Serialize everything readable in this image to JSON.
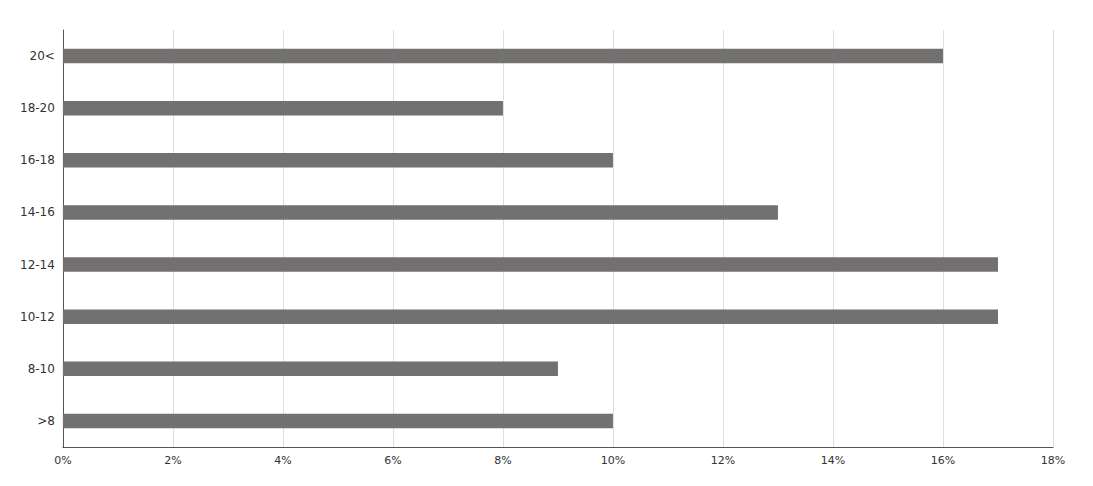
{
  "chart_data": {
    "type": "bar",
    "orientation": "horizontal",
    "categories": [
      ">8",
      "8-10",
      "10-12",
      "12-14",
      "14-16",
      "16-18",
      "18-20",
      "20<"
    ],
    "values": [
      0.1,
      0.09,
      0.17,
      0.17,
      0.13,
      0.1,
      0.08,
      0.16
    ],
    "color": "#737070",
    "xlim": [
      0,
      0.18
    ],
    "xticks": [
      {
        "value": 0,
        "label": "0%"
      },
      {
        "value": 0.02,
        "label": "2%"
      },
      {
        "value": 0.04,
        "label": "4%"
      },
      {
        "value": 0.06,
        "label": "6%"
      },
      {
        "value": 0.08,
        "label": "8%"
      },
      {
        "value": 0.1,
        "label": "10%"
      },
      {
        "value": 0.12,
        "label": "12%"
      },
      {
        "value": 0.14,
        "label": "14%"
      },
      {
        "value": 0.16,
        "label": "16%"
      },
      {
        "value": 0.18,
        "label": "18%"
      }
    ],
    "grid": true
  }
}
